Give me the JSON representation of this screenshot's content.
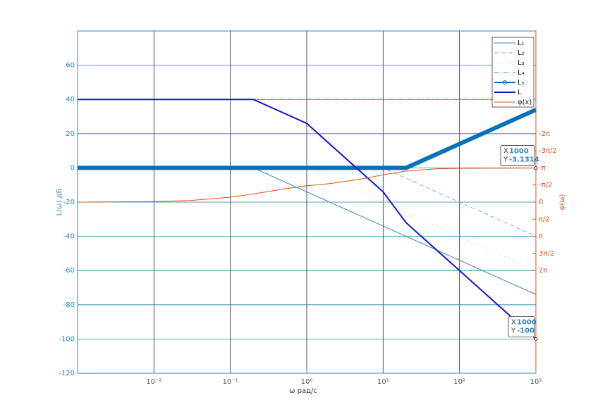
{
  "chart_data": {
    "type": "line",
    "x_label": "ω рад/с",
    "y_label": "L(ω) дБ",
    "y2_label": "φ(ω)",
    "xscale": "log",
    "xlim": [
      0.001,
      1000
    ],
    "xticks": [
      {
        "value": 0.01,
        "label": "10⁻²"
      },
      {
        "value": 0.1,
        "label": "10⁻¹"
      },
      {
        "value": 1,
        "label": "10⁰"
      },
      {
        "value": 10,
        "label": "10¹"
      },
      {
        "value": 100,
        "label": "10²"
      },
      {
        "value": 1000,
        "label": "10³"
      }
    ],
    "ylim": [
      -120,
      80
    ],
    "yticks": [
      -120,
      -100,
      -80,
      -60,
      -40,
      -20,
      0,
      20,
      40,
      60
    ],
    "y2lim": [
      -15.708,
      15.708
    ],
    "y2_reverse": true,
    "y2ticks": [
      {
        "value": -6.2832,
        "label": "-2π"
      },
      {
        "value": -4.7124,
        "label": "-3π/2"
      },
      {
        "value": -3.1416,
        "label": "-π"
      },
      {
        "value": -1.5708,
        "label": "-π/2"
      },
      0,
      {
        "value": 1.5708,
        "label": "π/2"
      },
      {
        "value": 3.1416,
        "label": "π"
      },
      {
        "value": 4.7124,
        "label": "3π/2"
      },
      {
        "value": 6.2832,
        "label": "2π"
      }
    ],
    "grid": true,
    "legend": "northeast",
    "series": [
      {
        "name": "L₁",
        "color": "#2e86c1",
        "line_style": "solid",
        "x": [
          0.001,
          0.2,
          1000
        ],
        "values": [
          0,
          0,
          -74
        ]
      },
      {
        "name": "L₂",
        "color": "#7fb2e5",
        "line_style": "dashed",
        "x": [
          0.001,
          10,
          1000
        ],
        "values": [
          0,
          0,
          -40
        ]
      },
      {
        "name": "L₃",
        "color": "#e8b59a",
        "line_style": "dotted",
        "x": [
          0.001,
          1,
          1000
        ],
        "values": [
          0,
          0,
          -60
        ]
      },
      {
        "name": "L₄",
        "color": "#2e86c1",
        "line_style": "dashdot",
        "x": [
          0.001,
          1000
        ],
        "values": [
          40,
          40
        ]
      },
      {
        "name": "L₅",
        "color": "#0072bd",
        "line_style": "solid",
        "marker": "o",
        "x": [
          0.001,
          20,
          1000
        ],
        "values": [
          0,
          0,
          34
        ]
      },
      {
        "name": "L",
        "color": "#1414d2",
        "line_style": "solid",
        "x": [
          0.001,
          0.2,
          1,
          10,
          20,
          1000
        ],
        "values": [
          40,
          40,
          26,
          -14,
          -32,
          -100
        ]
      },
      {
        "name": "φ(x)",
        "color": "#d95319",
        "line_style": "solid",
        "axis": "y2",
        "x": [
          0.001,
          0.01,
          0.03,
          0.1,
          0.2,
          0.5,
          1,
          2,
          5,
          10,
          20,
          50,
          100,
          1000
        ],
        "values": [
          0,
          -0.05,
          -0.15,
          -0.45,
          -0.75,
          -1.2,
          -1.5,
          -1.7,
          -2.1,
          -2.5,
          -2.85,
          -3.05,
          -3.1,
          -3.1314
        ]
      }
    ],
    "datatips": [
      {
        "x_name": "X",
        "y_name": "Y",
        "x": 1000,
        "y": -3.1314,
        "axis": "y2"
      },
      {
        "x_name": "X",
        "y_name": "Y",
        "x": 1000,
        "y": -100
      }
    ]
  }
}
